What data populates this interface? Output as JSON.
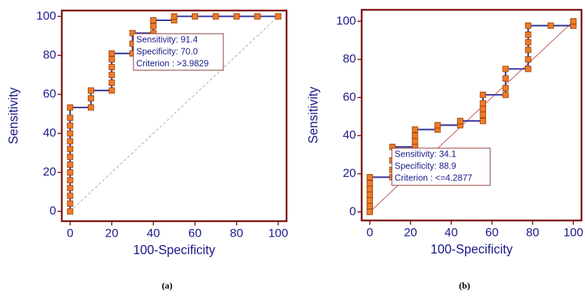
{
  "chart_data": [
    {
      "type": "line",
      "caption": "(a)",
      "x_label": "100-Specificity",
      "y_label": "Sensitivity",
      "xlim": [
        -4,
        104
      ],
      "ylim": [
        -5,
        103
      ],
      "xticks": [
        0,
        20,
        40,
        60,
        80,
        100
      ],
      "yticks": [
        0,
        20,
        40,
        60,
        80,
        100
      ],
      "series": [
        {
          "color": "#3a3a9c",
          "marker_color": "#f07a28",
          "x": [
            0,
            0,
            0,
            0,
            0,
            0,
            0,
            0,
            0,
            0,
            0,
            0,
            0,
            0,
            10,
            10,
            10,
            20,
            20,
            20,
            20,
            20,
            20,
            30,
            30,
            30,
            40,
            40,
            40,
            50,
            50,
            60,
            70,
            80,
            90,
            100
          ],
          "values": [
            0,
            4,
            8,
            12,
            16,
            20,
            24,
            28,
            32,
            36,
            40,
            44,
            48,
            53.3,
            53.3,
            58,
            62,
            62,
            66,
            70,
            74,
            78,
            81,
            81,
            86,
            91.4,
            91.4,
            95,
            98,
            98,
            100,
            100,
            100,
            100,
            100,
            100
          ]
        }
      ],
      "annotation": [
        "Sensitivity: 91.4",
        "Specificity: 70.0",
        "Criterion : >3.9829"
      ]
    },
    {
      "type": "line",
      "caption": "(b)",
      "x_label": "100-Specificity",
      "y_label": "Sensitivity",
      "xlim": [
        -4,
        104
      ],
      "ylim": [
        -4.5,
        106
      ],
      "xticks": [
        0,
        20,
        40,
        60,
        80,
        100
      ],
      "yticks": [
        0,
        20,
        40,
        60,
        80,
        100
      ],
      "series": [
        {
          "color": "#3a3a9c",
          "marker_color": "#f07a28",
          "x": [
            0,
            0,
            0,
            0,
            0,
            0,
            0,
            11.1,
            11.1,
            11.1,
            11.1,
            22.2,
            22.2,
            22.2,
            22.2,
            33.3,
            33.3,
            44.4,
            44.4,
            55.6,
            55.6,
            55.6,
            55.6,
            55.6,
            66.7,
            66.7,
            66.7,
            66.7,
            77.8,
            77.8,
            77.8,
            77.8,
            77.8,
            77.8,
            88.9,
            100,
            100
          ],
          "values": [
            0,
            3,
            6,
            9,
            12,
            15,
            18.2,
            18.2,
            22,
            27,
            34.1,
            34.1,
            37,
            40,
            43.2,
            43.2,
            45.5,
            45.5,
            47.7,
            47.7,
            51,
            54,
            57,
            61.4,
            61.4,
            65,
            70,
            75,
            75,
            80,
            85,
            89,
            93,
            97.7,
            97.7,
            97.7,
            100
          ]
        }
      ],
      "annotation": [
        "Sensitivity: 34.1",
        "Specificity: 88.9",
        "Criterion : <=4.2877"
      ]
    }
  ]
}
